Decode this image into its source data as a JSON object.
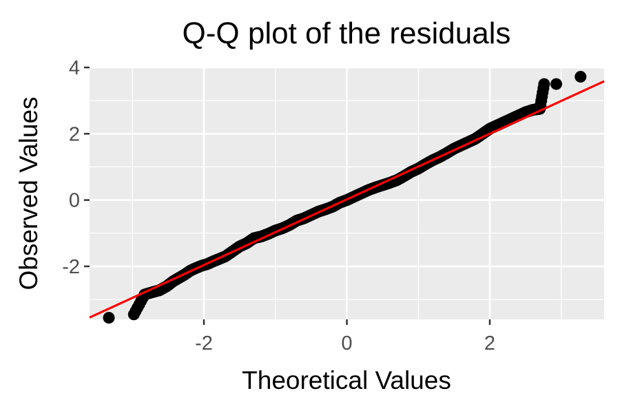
{
  "chart_data": {
    "type": "scatter",
    "title": "Q-Q plot of the residuals",
    "xlabel": "Theoretical Values",
    "ylabel": "Observed Values",
    "xlim": [
      -3.6,
      3.6
    ],
    "ylim": [
      -3.6,
      4.0
    ],
    "x_ticks": [
      -2,
      0,
      2
    ],
    "y_ticks": [
      -2,
      0,
      2,
      4
    ],
    "grid": true,
    "legend": "none",
    "reference_line": {
      "intercept": 0.02,
      "slope": 0.99,
      "color": "#ff0000"
    },
    "series": [
      {
        "color": "#000000",
        "x": [
          -3.33,
          -2.98,
          -2.83,
          -2.72,
          -2.62,
          -2.52,
          -2.43,
          -2.35,
          -2.27,
          -2.19,
          -2.11,
          -2.03,
          -1.95,
          -1.87,
          -1.79,
          -1.7,
          -1.6,
          -1.5,
          -1.4,
          -1.3,
          -1.2,
          -1.1,
          -1.0,
          -0.9,
          -0.8,
          -0.7,
          -0.6,
          -0.5,
          -0.4,
          -0.3,
          -0.2,
          -0.1,
          0.0,
          0.1,
          0.2,
          0.3,
          0.4,
          0.5,
          0.6,
          0.7,
          0.8,
          0.9,
          1.0,
          1.1,
          1.2,
          1.3,
          1.4,
          1.5,
          1.6,
          1.7,
          1.8,
          1.9,
          2.0,
          2.1,
          2.2,
          2.3,
          2.4,
          2.5,
          2.6,
          2.7,
          2.76,
          2.93,
          3.27
        ],
        "y": [
          -3.55,
          -3.45,
          -2.85,
          -2.78,
          -2.72,
          -2.6,
          -2.45,
          -2.35,
          -2.25,
          -2.13,
          -2.05,
          -1.98,
          -1.93,
          -1.85,
          -1.78,
          -1.7,
          -1.55,
          -1.4,
          -1.3,
          -1.15,
          -1.1,
          -1.02,
          -0.92,
          -0.85,
          -0.75,
          -0.62,
          -0.55,
          -0.45,
          -0.35,
          -0.28,
          -0.2,
          -0.08,
          0.0,
          0.1,
          0.2,
          0.3,
          0.38,
          0.45,
          0.52,
          0.6,
          0.72,
          0.85,
          0.95,
          1.08,
          1.2,
          1.3,
          1.42,
          1.55,
          1.65,
          1.75,
          1.85,
          2.0,
          2.15,
          2.25,
          2.35,
          2.45,
          2.55,
          2.65,
          2.72,
          2.75,
          3.5,
          3.5,
          3.72
        ]
      }
    ]
  }
}
